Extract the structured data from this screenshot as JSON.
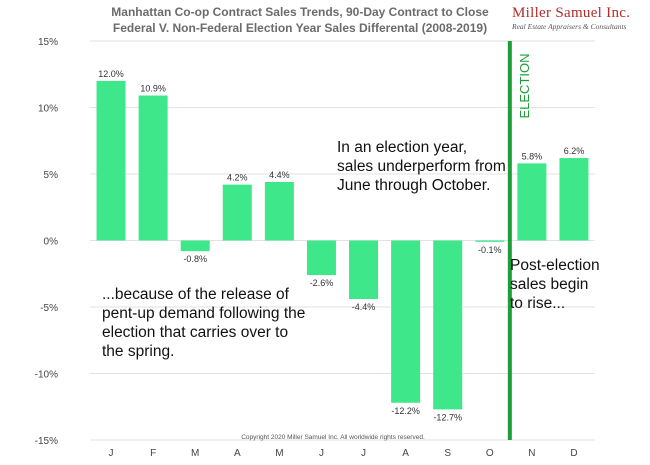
{
  "header": {
    "title_line1": "Manhattan Co-op Contract Sales Trends, 90-Day Contract to Close",
    "title_line2": "Federal V. Non-Federal Election Year Sales Differental (2008-2019)"
  },
  "logo": {
    "name": "Miller Samuel Inc.",
    "tagline": "Real Estate Appraisers & Consultants"
  },
  "annotations": {
    "top": "In an election year, sales underperform from June through October.",
    "bottom_left": "...because of the release of pent-up demand following the election that carries over to the spring.",
    "right": "Post-election sales begin to rise..."
  },
  "election_label": "ELECTION",
  "copyright": "Copyright 2020 Miller Samuel Inc. All worldwide rights reserved.",
  "colors": {
    "bar": "#3ee88a",
    "election_line": "#1e9e3a",
    "grid": "#e2e2e2",
    "axis_text": "#444444"
  },
  "chart_data": {
    "type": "bar",
    "title": "Manhattan Co-op Contract Sales Trends, 90-Day Contract to Close Federal V. Non-Federal Election Year Sales Differental (2008-2019)",
    "xlabel": "",
    "ylabel": "",
    "categories": [
      "J",
      "F",
      "M",
      "A",
      "M",
      "J",
      "J",
      "A",
      "S",
      "O",
      "N",
      "D"
    ],
    "values": [
      12.0,
      10.9,
      -0.8,
      4.2,
      4.4,
      -2.6,
      -4.4,
      -12.2,
      -12.7,
      -0.1,
      5.8,
      6.2
    ],
    "value_labels": [
      "12.0%",
      "10.9%",
      "-0.8%",
      "4.2%",
      "4.4%",
      "-2.6%",
      "-4.4%",
      "-12.2%",
      "-12.7%",
      "-0.1%",
      "5.8%",
      "6.2%"
    ],
    "ylim": [
      -15,
      15
    ],
    "yticks": [
      15,
      10,
      5,
      0,
      -5,
      -10,
      -15
    ],
    "ytick_labels": [
      "15%",
      "10%",
      "5%",
      "0%",
      "-5%",
      "-10%",
      "-15%"
    ],
    "grid": true,
    "election_marker_after_index": 9
  }
}
